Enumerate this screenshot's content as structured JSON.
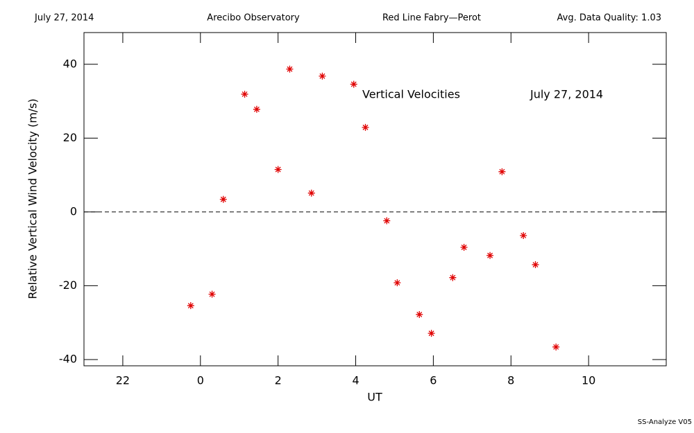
{
  "header": {
    "date": "July 27, 2014",
    "site": "Arecibo Observatory",
    "instrument": "Red Line Fabry—Perot",
    "quality": "Avg. Data Quality: 1.03"
  },
  "footer": "SS-Analyze V05",
  "chart_data": {
    "type": "scatter",
    "x_label": "UT",
    "y_label": "Relative Vertical Wind Velocity (m/s)",
    "annotations": [
      "Vertical Velocities",
      "July 27, 2014"
    ],
    "series": [
      {
        "name": "Vertical Velocities",
        "color": "#e00000",
        "x": [
          -0.25,
          0.3,
          0.59,
          1.14,
          1.45,
          2.0,
          2.3,
          2.86,
          3.14,
          3.95,
          4.25,
          4.8,
          5.07,
          5.64,
          5.95,
          6.5,
          6.79,
          7.46,
          7.77,
          8.32,
          8.63,
          9.16
        ],
        "values": [
          -25.4,
          -22.3,
          3.4,
          31.9,
          27.8,
          11.5,
          38.7,
          5.1,
          36.8,
          34.6,
          22.9,
          -2.4,
          -19.2,
          -27.8,
          -32.9,
          -17.8,
          -9.6,
          -11.8,
          10.9,
          -6.4,
          -14.3,
          -36.6
        ]
      }
    ],
    "xlim": [
      -3,
      12
    ],
    "xticks": [
      {
        "value": -2,
        "label": "22"
      },
      0,
      2,
      4,
      6,
      8,
      10
    ],
    "ylim": [
      -41.7,
      48.6
    ],
    "yticks": [
      -40,
      -20,
      0,
      20,
      40
    ],
    "reference_line": 0
  }
}
